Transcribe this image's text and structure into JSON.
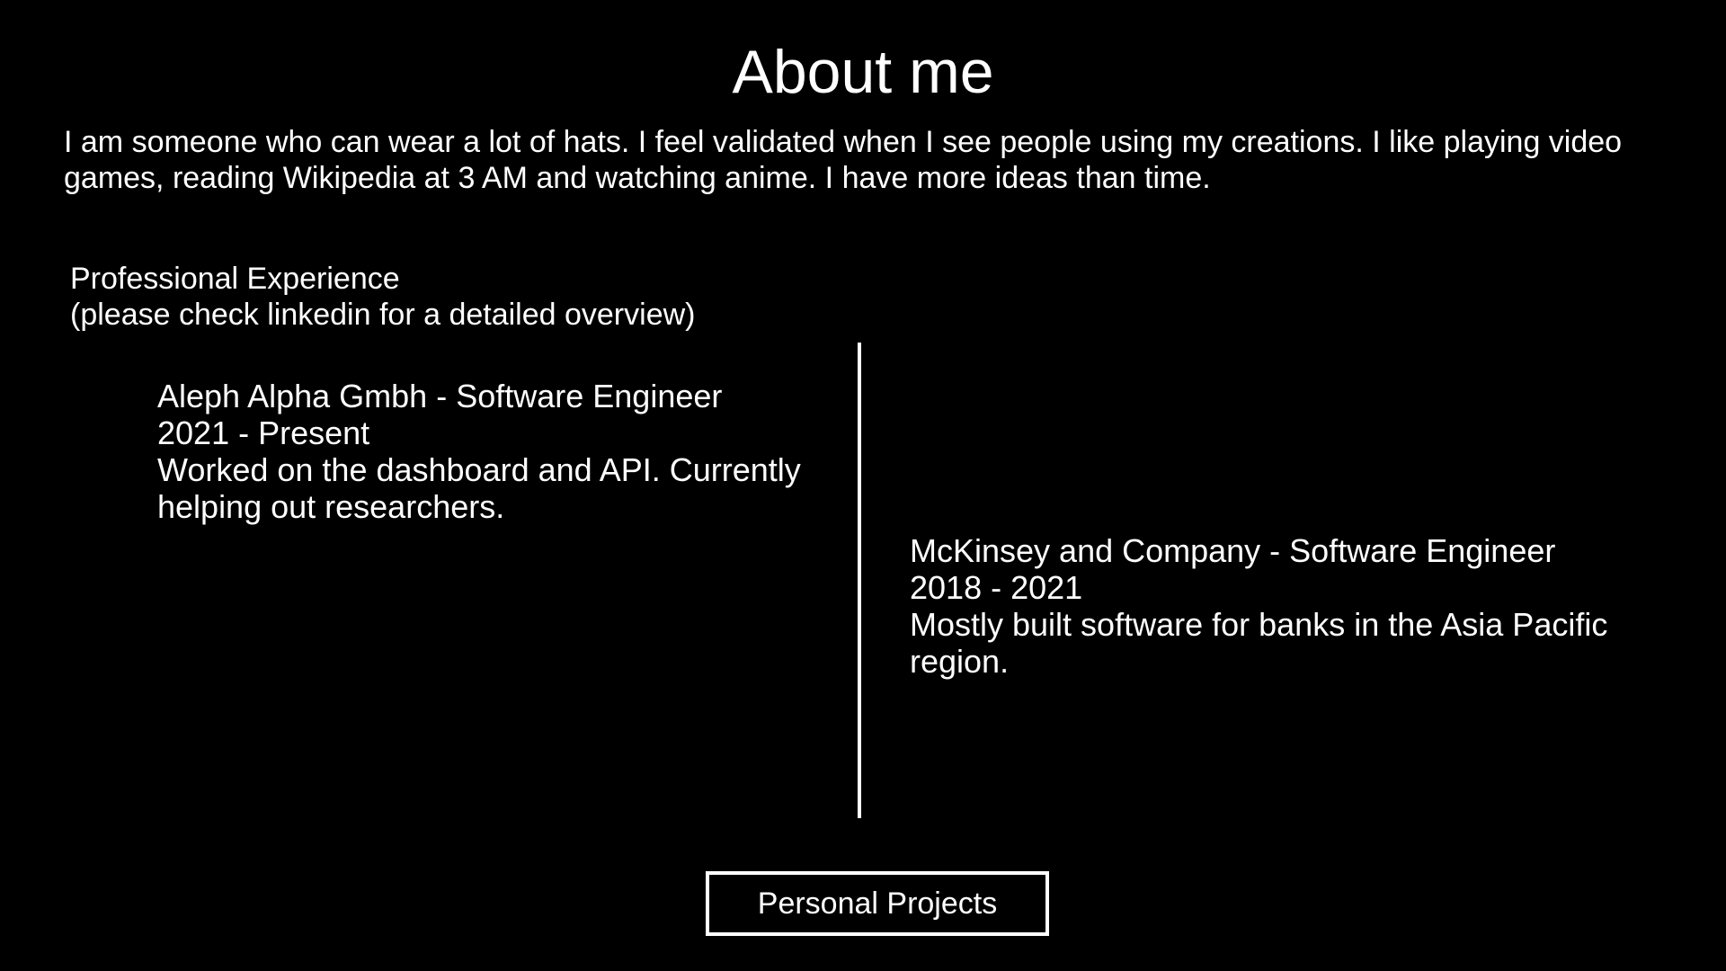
{
  "page": {
    "title": "About me",
    "intro": "I am someone who can wear a lot of hats. I feel validated when I see people using my creations. I like playing video games, reading Wikipedia at 3 AM and watching anime. I have more ideas than time."
  },
  "experience": {
    "heading": "Professional Experience",
    "subheading": "(please check linkedin for a detailed overview)",
    "jobs": [
      {
        "title": "Aleph Alpha Gmbh - Software Engineer",
        "period": "2021 - Present",
        "description": "Worked on the dashboard and API. Currently helping out researchers."
      },
      {
        "title": "McKinsey and Company - Software Engineer",
        "period": "2018 - 2021",
        "description": "Mostly built software for banks in the Asia Pacific region."
      }
    ]
  },
  "footer": {
    "projects_button_label": "Personal Projects"
  },
  "colors": {
    "background": "#000000",
    "foreground": "#ffffff"
  }
}
